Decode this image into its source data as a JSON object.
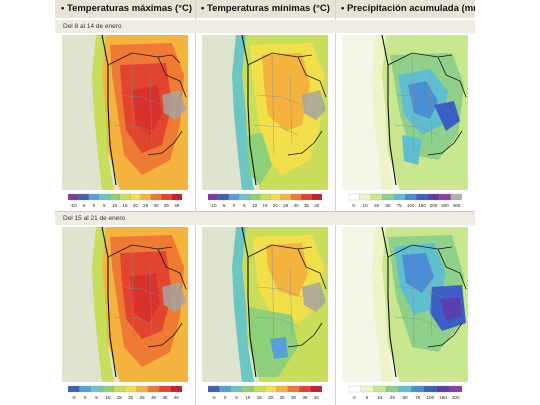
{
  "headers": [
    "• Temperaturas máximas (°C)",
    "• Temperaturas mínimas (°C)",
    "• Precipitación acumulada (mm)"
  ],
  "periods": [
    "Del 8 al 14 de enero",
    "Del 15 al 21 de enero"
  ],
  "legends": {
    "tmax_1": {
      "labels": [
        "-10",
        "-5",
        "0",
        "5",
        "10",
        "15",
        "20",
        "25",
        "30",
        "35",
        "40"
      ],
      "colors": [
        "#7a3ea0",
        "#3f5fb5",
        "#5aa0d8",
        "#6cc7c4",
        "#8fd17b",
        "#c9de5a",
        "#f2e04a",
        "#f5b43e",
        "#ee7a34",
        "#e2452f",
        "#c7202a"
      ]
    },
    "tmin_1": {
      "labels": [
        "-10",
        "-5",
        "0",
        "5",
        "10",
        "15",
        "20",
        "25",
        "30",
        "35",
        "40"
      ],
      "colors": [
        "#7a3ea0",
        "#3f5fb5",
        "#5aa0d8",
        "#6cc7c4",
        "#8fd17b",
        "#c9de5a",
        "#f2e04a",
        "#f5b43e",
        "#ee7a34",
        "#e2452f",
        "#c7202a"
      ]
    },
    "prec_1": {
      "labels": [
        "0",
        "10",
        "25",
        "50",
        "75",
        "100",
        "150",
        "200",
        "300",
        "400"
      ],
      "colors": [
        "#ffffff",
        "#eef3c8",
        "#c9e78e",
        "#8fd08a",
        "#5fbfd0",
        "#4a8fd6",
        "#3c5fc4",
        "#5a3fb0",
        "#8a3fa8",
        "#b0b0b0"
      ]
    },
    "tmax_2": {
      "labels": [
        "-5",
        "0",
        "5",
        "10",
        "15",
        "20",
        "25",
        "30",
        "35",
        "40"
      ],
      "colors": [
        "#3f5fb5",
        "#5aa0d8",
        "#6cc7c4",
        "#8fd17b",
        "#c9de5a",
        "#f2e04a",
        "#f5b43e",
        "#ee7a34",
        "#e2452f",
        "#c7202a"
      ]
    },
    "tmin_2": {
      "labels": [
        "-5",
        "0",
        "5",
        "10",
        "15",
        "20",
        "25",
        "30",
        "35",
        "40"
      ],
      "colors": [
        "#3f5fb5",
        "#5aa0d8",
        "#6cc7c4",
        "#8fd17b",
        "#c9de5a",
        "#f2e04a",
        "#f5b43e",
        "#ee7a34",
        "#e2452f",
        "#c7202a"
      ]
    },
    "prec_2": {
      "labels": [
        "0",
        "5",
        "10",
        "25",
        "50",
        "75",
        "100",
        "150",
        "200"
      ],
      "colors": [
        "#ffffff",
        "#eef3c8",
        "#c9e78e",
        "#8fd08a",
        "#5fbfd0",
        "#4a8fd6",
        "#3c5fc4",
        "#5a3fb0",
        "#8a3fa8"
      ]
    }
  },
  "colors": {
    "header_bg": "#e7e3d6",
    "period_bg": "#efece4",
    "ocean_pacific": "#d7dec8",
    "border": "#111111"
  }
}
